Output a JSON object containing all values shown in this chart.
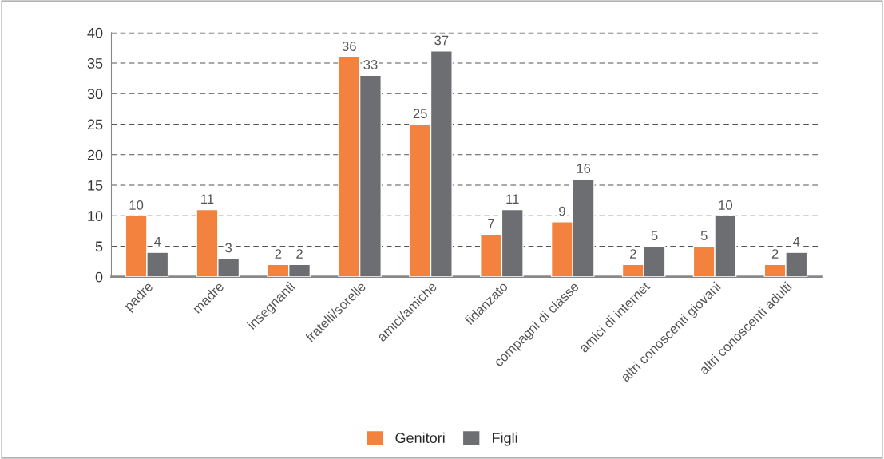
{
  "chart_data": {
    "type": "bar",
    "categories": [
      "padre",
      "madre",
      "insegnanti",
      "fratelli/sorelle",
      "amici/amiche",
      "fidanzato",
      "compagni di classe",
      "amici di internet",
      "altri conoscenti giovani",
      "altri conoscenti adulti"
    ],
    "series": [
      {
        "name": "Genitori",
        "color": "#f4823f",
        "values": [
          10,
          11,
          2,
          36,
          25,
          7,
          9,
          2,
          5,
          2
        ]
      },
      {
        "name": "Figli",
        "color": "#6d6e71",
        "values": [
          4,
          3,
          2,
          33,
          37,
          11,
          16,
          5,
          10,
          4
        ]
      }
    ],
    "ylim": [
      0,
      40
    ],
    "yticks": [
      0,
      5,
      10,
      15,
      20,
      25,
      30,
      35,
      40
    ],
    "grid": "y",
    "data_labels": true,
    "legend": "bottom"
  }
}
